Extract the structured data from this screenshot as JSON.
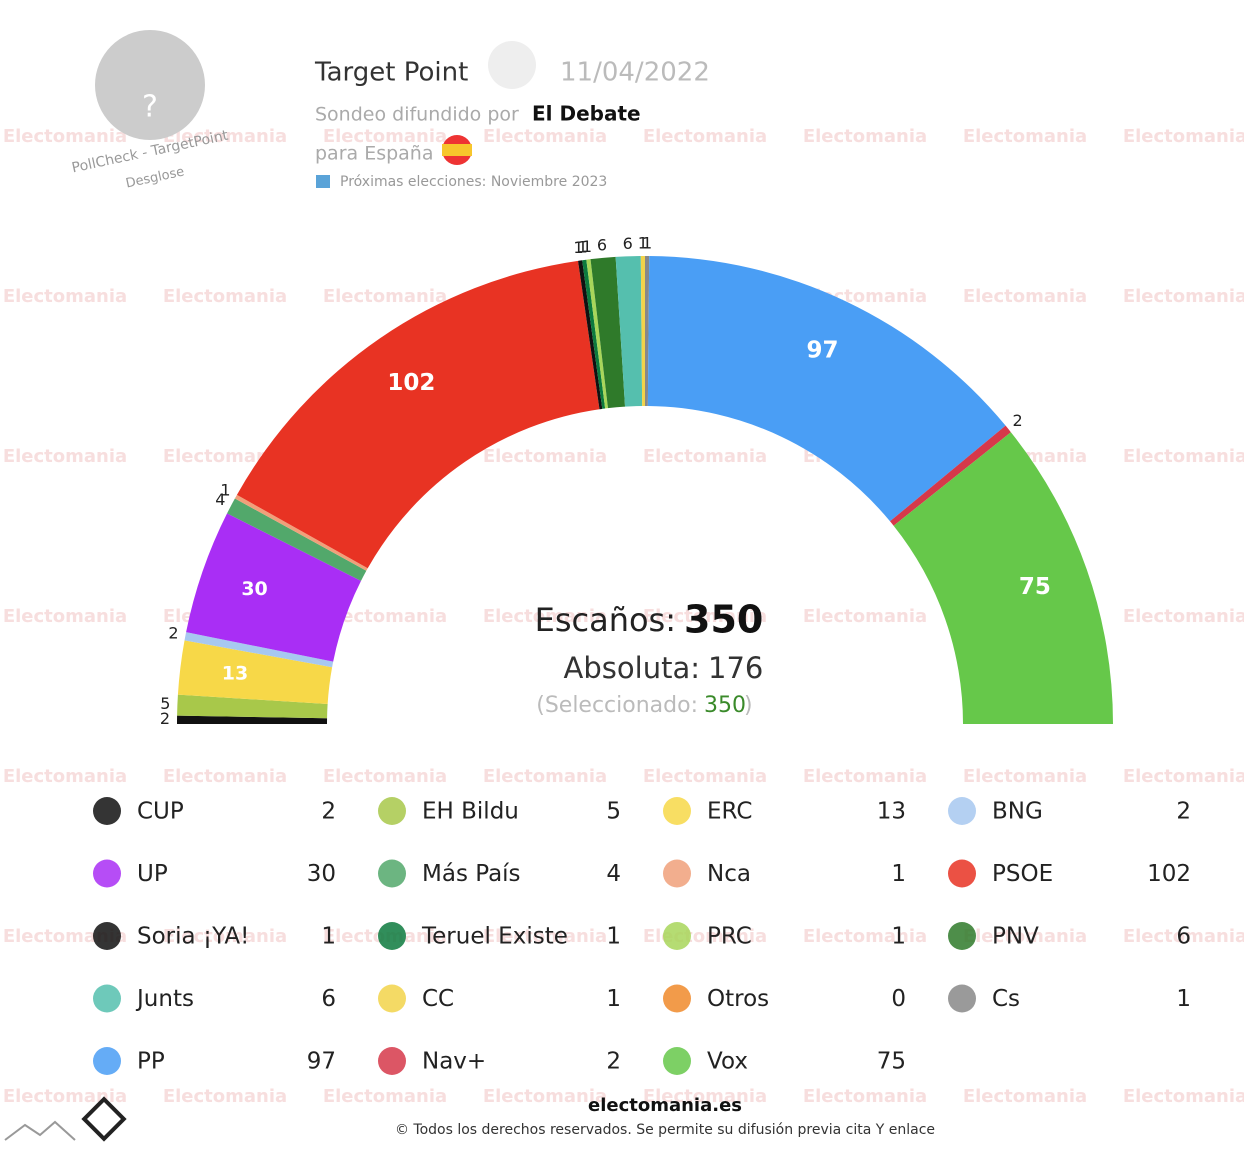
{
  "chart_data": {
    "type": "parliament",
    "pollster": "Target Point",
    "date": "11/04/2022",
    "sponsor_prefix": "Sondeo difundido por",
    "sponsor": "El Debate",
    "region": "para España",
    "next_elections": "Próximas elecciones: Noviembre 2023",
    "avatar_text": "?",
    "avatar_caption": "PollCheck - TargetPoint",
    "breakdown": "Desglose",
    "watermark": "Electomania",
    "seats_label": "Escaños:",
    "seats_total": 350,
    "majority_label": "Absoluta:",
    "majority": 176,
    "selected_label": "(Seleccionado:",
    "selected": 350,
    "selected_close": ")",
    "categories": [
      "CUP",
      "EH Bildu",
      "ERC",
      "BNG",
      "UP",
      "Más País",
      "Nca",
      "PSOE",
      "Soria ¡YA!",
      "Teruel Existe",
      "PRC",
      "PNV",
      "Junts",
      "CC",
      "Otros",
      "Cs",
      "PP",
      "Nav+",
      "Vox"
    ],
    "values": [
      2,
      5,
      13,
      2,
      30,
      4,
      1,
      102,
      1,
      1,
      1,
      6,
      6,
      1,
      0,
      1,
      97,
      2,
      75
    ],
    "colors": [
      "#111111",
      "#a8c84a",
      "#f7d848",
      "#a7c8f0",
      "#a92ef5",
      "#52a86b",
      "#f0a07a",
      "#e83323",
      "#111111",
      "#0d7a3e",
      "#a8d65a",
      "#2f7a2a",
      "#55bfae",
      "#f2d34a",
      "#f08a2a",
      "#888888",
      "#4a9ef5",
      "#d6384a",
      "#66c84a"
    ],
    "site": "electomania.es",
    "copyright": "© Todos los derechos reservados. Se permite su difusión previa cita Y enlace"
  }
}
